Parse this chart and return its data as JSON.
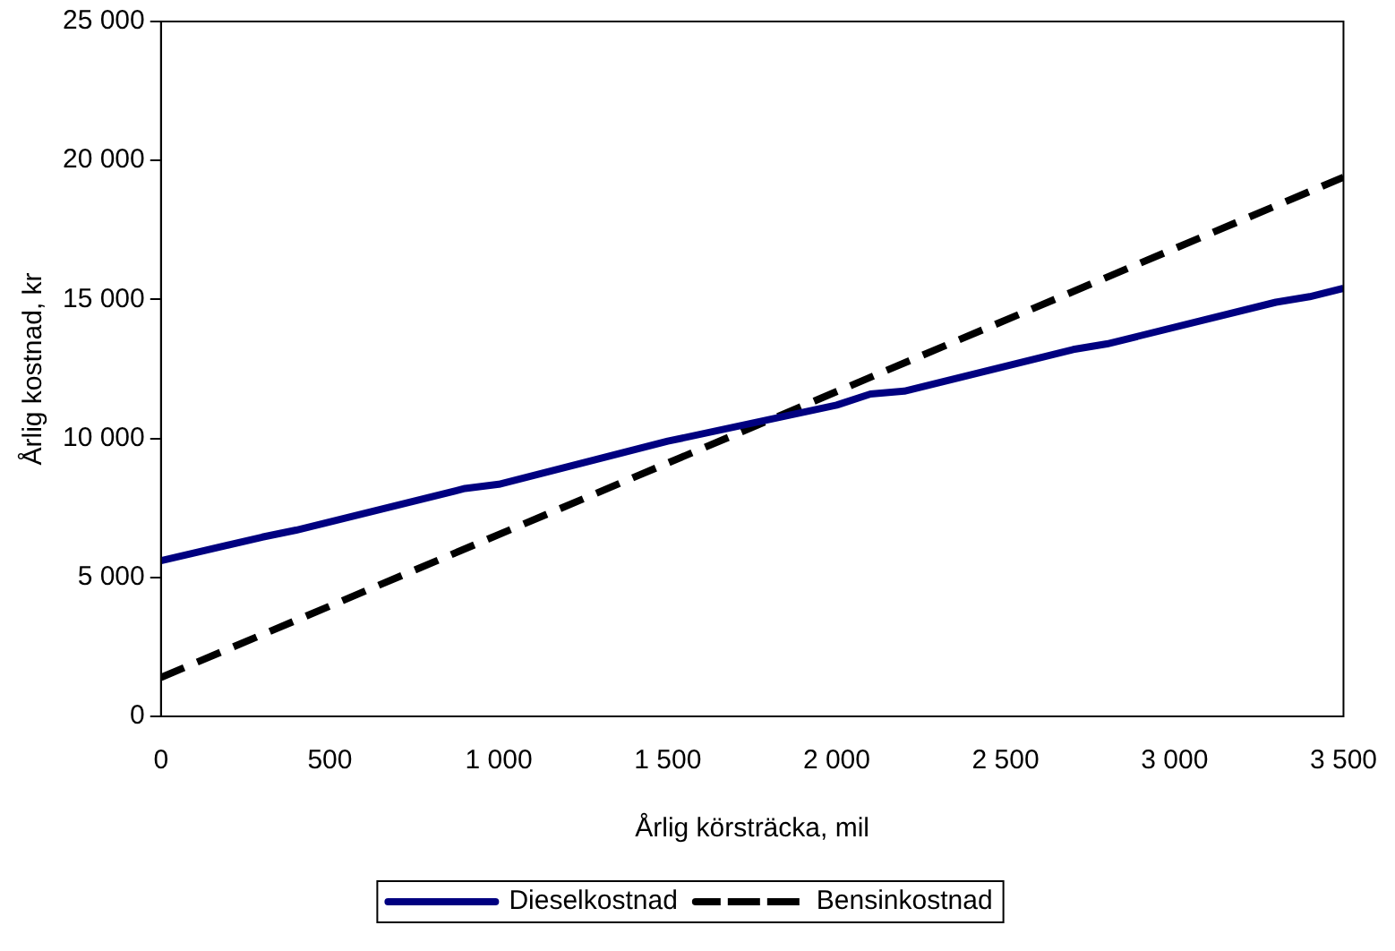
{
  "chart_data": {
    "type": "line",
    "xlabel": "Årlig körsträcka, mil",
    "ylabel": "Årlig kostnad, kr",
    "xlim": [
      0,
      3500
    ],
    "xticks": [
      0,
      500,
      {
        "value": 1000,
        "label": "1 000"
      },
      {
        "value": 1500,
        "label": "1 500"
      },
      {
        "value": 2000,
        "label": "2 000"
      },
      {
        "value": 2500,
        "label": "2 500"
      },
      {
        "value": 3000,
        "label": "3 000"
      },
      {
        "value": 3500,
        "label": "3 500"
      }
    ],
    "ylim": [
      0,
      25000
    ],
    "yticks": [
      0,
      {
        "value": 5000,
        "label": "5 000"
      },
      {
        "value": 10000,
        "label": "10 000"
      },
      {
        "value": 15000,
        "label": "15 000"
      },
      {
        "value": 20000,
        "label": "20 000"
      },
      {
        "value": 25000,
        "label": "25 000"
      }
    ],
    "grid": false,
    "legend": "bottom",
    "marker": "none",
    "series": [
      {
        "name": "Dieselkostnad",
        "color": "#000080",
        "line_style": "solid",
        "x": [
          0,
          300,
          400,
          900,
          1000,
          1500,
          2000,
          2100,
          2200,
          2700,
          2800,
          3300,
          3400,
          3500
        ],
        "values": [
          5600,
          6450,
          6700,
          8200,
          8350,
          9900,
          11200,
          11600,
          11700,
          13200,
          13400,
          14900,
          15100,
          15400
        ]
      },
      {
        "name": "Bensinkostnad",
        "color": "#000000",
        "line_style": "dashed",
        "x": [
          0,
          3500
        ],
        "values": [
          1400,
          19400
        ]
      }
    ]
  }
}
